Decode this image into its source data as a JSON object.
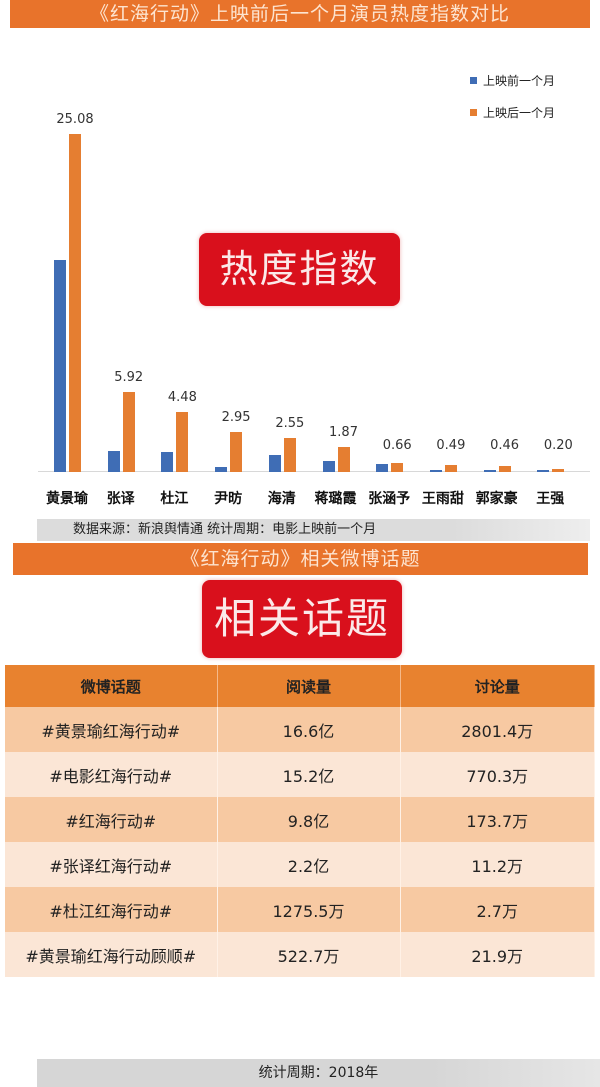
{
  "top_title": "《红海行动》上映前后一个月演员热度指数对比",
  "heat_stamp": "热度指数",
  "legend": [
    {
      "label": "上映前一个月",
      "color": "#3f6db5"
    },
    {
      "label": "上映后一个月",
      "color": "#e57e31"
    }
  ],
  "source_note": "数据来源：新浪舆情通  统计周期：电影上映前一个月",
  "chart_data": {
    "type": "bar",
    "title": "《红海行动》上映前后一个月演员热度指数对比",
    "xlabel": "",
    "ylabel": "热度指数",
    "categories": [
      "黄景瑜",
      "张译",
      "杜江",
      "尹昉",
      "海清",
      "蒋璐霞",
      "张涵予",
      "王雨甜",
      "郭家豪",
      "王强"
    ],
    "series": [
      {
        "name": "上映前一个月",
        "color": "#3f6db5",
        "values": [
          15.7,
          1.56,
          1.48,
          0.37,
          1.26,
          0.8,
          0.6,
          0.15,
          0.12,
          0.08
        ]
      },
      {
        "name": "上映后一个月",
        "color": "#e57e31",
        "values": [
          25.08,
          5.92,
          4.48,
          2.95,
          2.55,
          1.87,
          0.66,
          0.49,
          0.46,
          0.2
        ]
      }
    ],
    "data_labels": [
      "25.08",
      "5.92",
      "4.48",
      "2.95",
      "2.55",
      "1.87",
      "0.66",
      "0.49",
      "0.46",
      "0.20"
    ],
    "ylim": [
      0,
      27
    ],
    "grid": false,
    "legend_position": "top-right"
  },
  "mid_title": "《红海行动》相关微博话题",
  "topic_stamp": "相关话题",
  "table": {
    "headers": [
      "微博话题",
      "阅读量",
      "讨论量"
    ],
    "rows": [
      [
        "#黄景瑜红海行动#",
        "16.6亿",
        "2801.4万"
      ],
      [
        "#电影红海行动#",
        "15.2亿",
        "770.3万"
      ],
      [
        "#红海行动#",
        "9.8亿",
        "173.7万"
      ],
      [
        "#张译红海行动#",
        "2.2亿",
        "11.2万"
      ],
      [
        "#杜江红海行动#",
        "1275.5万",
        "2.7万"
      ],
      [
        "#黄景瑜红海行动顾顺#",
        "522.7万",
        "21.9万"
      ]
    ]
  },
  "footer_note": "统计周期：2018年"
}
